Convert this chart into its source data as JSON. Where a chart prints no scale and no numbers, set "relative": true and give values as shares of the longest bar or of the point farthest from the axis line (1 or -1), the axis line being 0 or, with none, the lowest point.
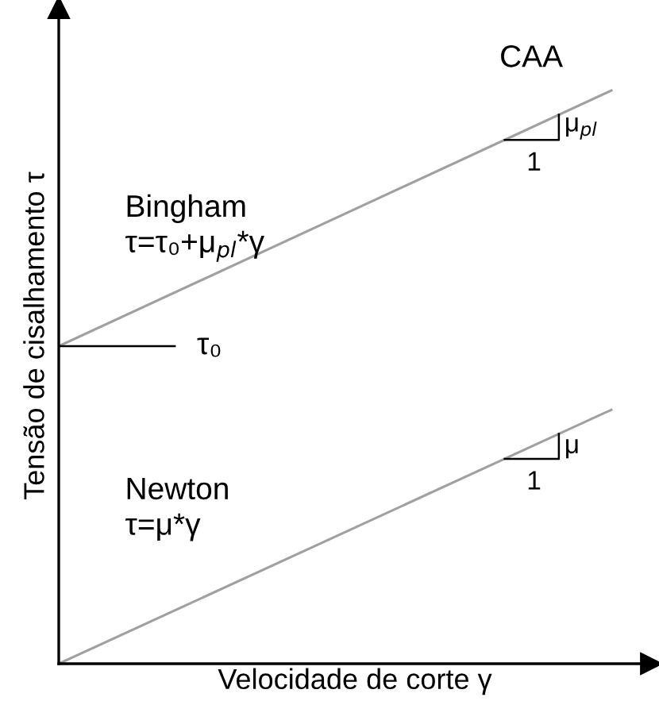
{
  "chart_data": {
    "type": "line",
    "relative": true,
    "xlabel": "Velocidade de corte γ",
    "ylabel": "Tensão de cisalhamento τ",
    "categories": [
      null,
      null
    ],
    "series": [
      {
        "color": "#a0a0a0",
        "values": [
          0.554,
          1
        ]
      },
      {
        "color": "#a0a0a0",
        "values": [
          0,
          0.443
        ]
      }
    ],
    "annotations": [
      "Bingham\nτ=τ₀+μ$_{pl}$*γ",
      "Newton\nτ=μ*γ",
      "CAA",
      "τ₀",
      "1",
      "μ$_{pl}$",
      "1",
      "μ"
    ]
  }
}
